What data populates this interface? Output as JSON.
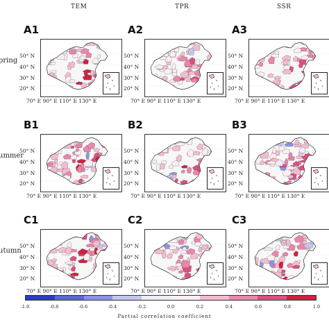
{
  "column_titles": [
    "TEM",
    "TPR",
    "SSR"
  ],
  "row_labels": [
    "pring",
    "ummer",
    "utumn"
  ],
  "panels": [
    {
      "label": "A1",
      "intensity": 0.65
    },
    {
      "label": "A2",
      "intensity": 0.45
    },
    {
      "label": "A3",
      "intensity": 0.6
    },
    {
      "label": "B1",
      "intensity": 0.8
    },
    {
      "label": "B2",
      "intensity": 0.55
    },
    {
      "label": "B3",
      "intensity": 0.6
    },
    {
      "label": "C1",
      "intensity": 0.9
    },
    {
      "label": "C2",
      "intensity": 0.6
    },
    {
      "label": "C3",
      "intensity": 0.6
    }
  ],
  "lat_ticks": [
    "50° N",
    "40° N",
    "30° N",
    "20° N"
  ],
  "lon_ticks": "70° E 90° E 110° E 130° E",
  "colorbar": {
    "ticks": [
      "-1.0",
      "-0.8",
      "-0.6",
      "-0.4",
      "-0.2",
      "0.0",
      "0.2",
      "0.4",
      "0.6",
      "0.8",
      "1.0"
    ],
    "colors": [
      "#2b3cc6",
      "#5a68d6",
      "#8b93e2",
      "#c3c7ef",
      "#eceef8",
      "#fbeef3",
      "#f3bcd2",
      "#ea86ab",
      "#dd4f7e",
      "#d0213f"
    ],
    "title": "Partial correlation coefficient"
  }
}
